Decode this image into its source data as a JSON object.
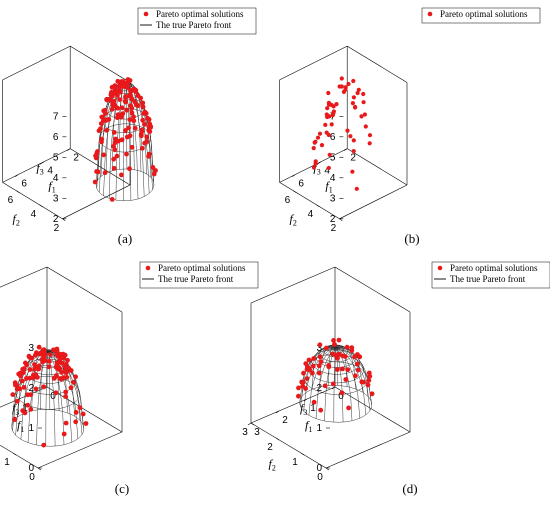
{
  "chart_data": [
    {
      "type": "scatter",
      "panel_label": "(a)",
      "legend": [
        "Pareto optimal solutions",
        "The true Pareto front"
      ],
      "xlabel": "f1",
      "ylabel": "f2",
      "zlabel": "f3",
      "xticks": [
        "2",
        "4",
        "6"
      ],
      "yticks": [
        "2",
        "4",
        "6"
      ],
      "zticks": [
        "2",
        "3",
        "4",
        "5",
        "6",
        "7"
      ],
      "xlim": [
        2,
        7.2
      ],
      "ylim": [
        2,
        7.2
      ],
      "zlim": [
        2,
        7
      ],
      "surface": {
        "kind": "dome",
        "min": 2,
        "max": 7,
        "center": 2.2
      },
      "series": [
        {
          "name": "Pareto optimal solutions",
          "color": "#e8191b",
          "point_count": 150
        }
      ]
    },
    {
      "type": "scatter",
      "panel_label": "(b)",
      "legend": [
        "Pareto optimal solutions"
      ],
      "xlabel": "f1",
      "ylabel": "f2",
      "zlabel": "f3",
      "xticks": [
        "2",
        "4",
        "6"
      ],
      "yticks": [
        "2",
        "4",
        "6"
      ],
      "zticks": [
        "2",
        "3",
        "4",
        "5",
        "6",
        "7"
      ],
      "xlim": [
        2,
        7.2
      ],
      "ylim": [
        2,
        7.2
      ],
      "zlim": [
        2,
        7
      ],
      "series": [
        {
          "name": "Pareto optimal solutions",
          "color": "#e8191b",
          "point_count": 55
        }
      ]
    },
    {
      "type": "scatter",
      "panel_label": "(c)",
      "legend": [
        "Pareto optimal solutions",
        "The true Pareto front"
      ],
      "xlabel": "f1",
      "ylabel": "f2",
      "zlabel": "f3",
      "xticks": [
        "0",
        "1",
        "2",
        "3"
      ],
      "yticks": [
        "0",
        "1",
        "2",
        "3"
      ],
      "zticks": [
        "0",
        "1",
        "2",
        "3"
      ],
      "xlim": [
        0,
        3
      ],
      "ylim": [
        0,
        3
      ],
      "zlim": [
        0,
        3
      ],
      "surface": {
        "kind": "dome",
        "min": 0,
        "max": 1.9,
        "center": 1.4
      },
      "series": [
        {
          "name": "Pareto optimal solutions",
          "color": "#e8191b",
          "point_count": 110
        }
      ]
    },
    {
      "type": "scatter",
      "panel_label": "(d)",
      "legend": [
        "Pareto optimal solutions",
        "The true Pareto front"
      ],
      "xlabel": "f1",
      "ylabel": "f2",
      "zlabel": "f3",
      "xticks": [
        "0",
        "1",
        "2",
        "3"
      ],
      "yticks": [
        "0",
        "1",
        "2",
        "3"
      ],
      "zticks": [
        "0",
        "1",
        "2",
        "3"
      ],
      "xlim": [
        0,
        3
      ],
      "ylim": [
        0,
        3
      ],
      "zlim": [
        0,
        3
      ],
      "surface": {
        "kind": "dome",
        "min": 0.6,
        "max": 2.0,
        "center": 1.4
      },
      "series": [
        {
          "name": "Pareto optimal solutions",
          "color": "#e8191b",
          "point_count": 60
        }
      ]
    }
  ]
}
